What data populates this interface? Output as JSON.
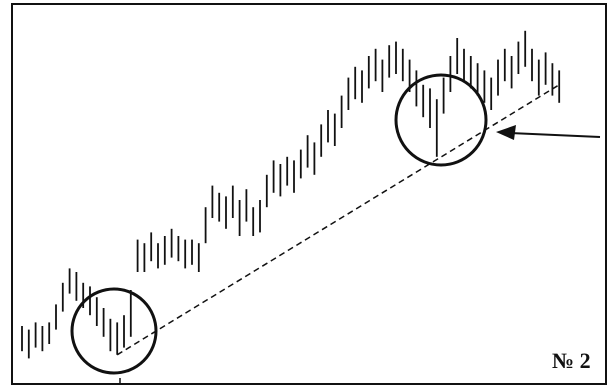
{
  "chart_data": {
    "type": "range-bar",
    "label": "№ 2",
    "color": "#111111",
    "ylim": [
      0,
      100
    ],
    "highs": [
      15,
      14,
      16,
      15,
      16,
      21,
      27,
      31,
      30,
      27,
      26,
      23,
      20,
      17,
      16,
      18,
      25,
      39,
      38,
      41,
      38,
      40,
      42,
      40,
      39,
      39,
      38,
      48,
      54,
      52,
      51,
      54,
      50,
      53,
      48,
      50,
      57,
      61,
      60,
      62,
      61,
      64,
      68,
      66,
      71,
      75,
      74,
      79,
      84,
      87,
      86,
      90,
      92,
      89,
      93,
      94,
      92,
      89,
      86,
      82,
      81,
      78,
      84,
      90,
      95,
      92,
      90,
      88,
      86,
      84,
      89,
      92,
      90,
      94,
      97,
      92,
      89,
      91,
      88,
      86
    ],
    "lows": [
      8,
      6,
      9,
      8,
      10,
      14,
      19,
      24,
      22,
      20,
      18,
      15,
      12,
      8,
      7,
      9,
      12,
      30,
      30,
      33,
      31,
      32,
      34,
      33,
      31,
      32,
      30,
      38,
      45,
      44,
      42,
      45,
      40,
      44,
      40,
      41,
      48,
      52,
      51,
      54,
      52,
      56,
      59,
      57,
      62,
      66,
      65,
      70,
      75,
      78,
      77,
      81,
      83,
      80,
      84,
      85,
      83,
      80,
      76,
      73,
      70,
      62,
      74,
      80,
      85,
      83,
      81,
      79,
      77,
      75,
      79,
      83,
      81,
      85,
      87,
      83,
      79,
      82,
      79,
      77
    ],
    "trendline": {
      "x": [
        14,
        79
      ],
      "y": [
        7,
        82
      ]
    }
  }
}
